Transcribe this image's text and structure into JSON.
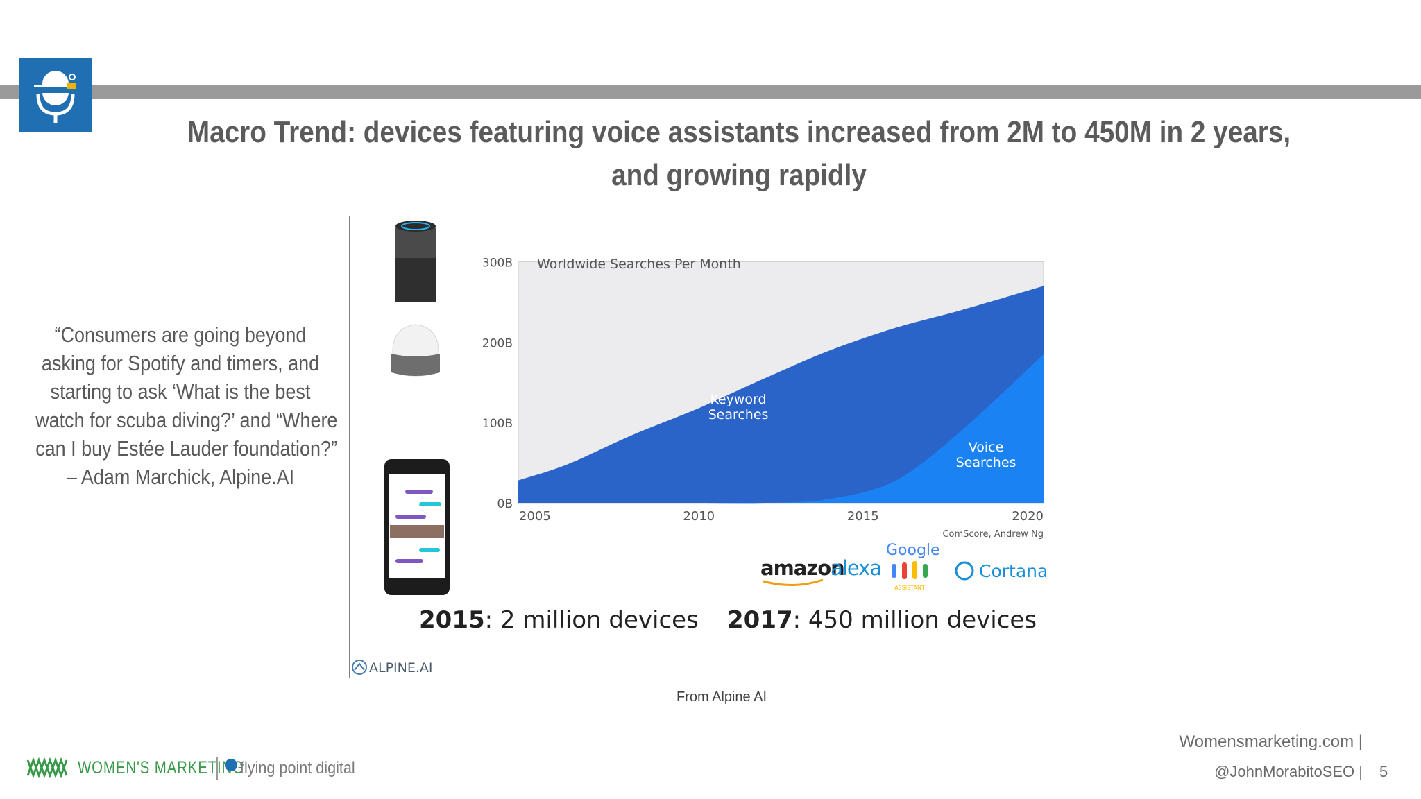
{
  "slide": {
    "title_line1": "Macro Trend: devices featuring voice assistants increased from 2M to 450M in 2 years,",
    "title_line2": "and growing rapidly",
    "quote_lines": [
      "“Consumers are going beyond",
      "asking for Spotify and timers, and",
      "starting to ask ‘What is the best",
      "watch for scuba diving?’ and “Where",
      "can I buy Estée Lauder foundation?”",
      "– Adam Marchick, Alpine.AI"
    ],
    "caption": "From Alpine AI",
    "page_number": "5"
  },
  "footer": {
    "brand": "WOMEN'S MARKETING",
    "partner": "flying point digital",
    "site": "Womensmarketing.com |",
    "handle": "@JohnMorabitoSEO |"
  },
  "figure": {
    "source": "ComScore, Andrew Ng",
    "brands": {
      "amazon": "amazon",
      "alexa": "alexa",
      "google": "Google",
      "assistant": "ASSISTANT",
      "cortana": "Cortana"
    },
    "stat_2015_year": "2015",
    "stat_2015_text": ": 2 million devices",
    "stat_2017_year": "2017",
    "stat_2017_text": ": 450 million devices",
    "alpine_logo": "ALPINE.AI"
  },
  "chart_data": {
    "type": "area",
    "title": "Worldwide Searches Per Month",
    "xlabel": "",
    "ylabel": "",
    "x_ticks": [
      "2005",
      "2010",
      "2015",
      "2020"
    ],
    "y_ticks": [
      "0B",
      "100B",
      "200B",
      "300B"
    ],
    "xlim": [
      2004.5,
      2020.5
    ],
    "ylim": [
      0,
      310
    ],
    "x": [
      2004.5,
      2006,
      2008,
      2010,
      2012,
      2014,
      2016,
      2018,
      2020.5
    ],
    "series": [
      {
        "name": "Keyword Searches",
        "values": [
          28,
          48,
          85,
          118,
          155,
          190,
          218,
          240,
          270
        ]
      },
      {
        "name": "Voice Searches",
        "values": [
          0,
          0,
          0,
          0,
          0,
          5,
          28,
          90,
          185
        ]
      }
    ],
    "series_labels": [
      "Keyword",
      "Searches",
      "Voice",
      "Searches"
    ],
    "colors": {
      "keyword": "#2b64c8",
      "voice": "#1a82f2",
      "background": "#ececef"
    },
    "grid": false,
    "legend": "inline-labels"
  }
}
